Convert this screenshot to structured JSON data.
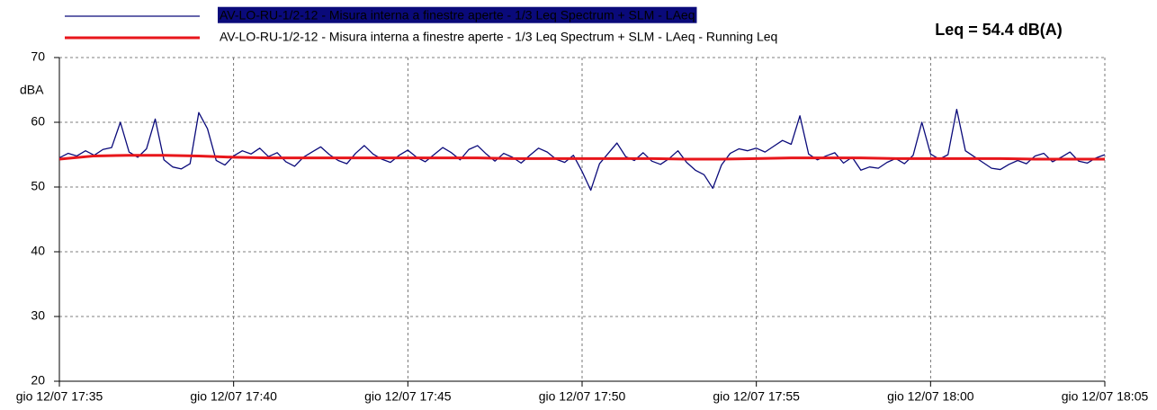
{
  "chart_data": {
    "type": "line",
    "annotation": "Leq = 54.4 dB(A)",
    "ylabel": "dBA",
    "xlim": [
      0,
      30
    ],
    "xticks": [
      {
        "value": 0,
        "label": "gio 12/07 17:35"
      },
      {
        "value": 5,
        "label": "gio 12/07 17:40"
      },
      {
        "value": 10,
        "label": "gio 12/07 17:45"
      },
      {
        "value": 15,
        "label": "gio 12/07 17:50"
      },
      {
        "value": 20,
        "label": "gio 12/07 17:55"
      },
      {
        "value": 25,
        "label": "gio 12/07 18:00"
      },
      {
        "value": 30,
        "label": "gio 12/07 18:05"
      }
    ],
    "ylim": [
      20,
      70
    ],
    "yticks": [
      20,
      30,
      40,
      50,
      60,
      70
    ],
    "grid": true,
    "legend": "top",
    "series": [
      {
        "name": "AV-LO-RU-1/2-12 - Misura interna a finestre aperte - 1/3 Leq Spectrum + SLM - LAeq",
        "color": "#0a0a7a",
        "x": [
          0,
          0.25,
          0.5,
          0.75,
          1,
          1.25,
          1.5,
          1.75,
          2,
          2.25,
          2.5,
          2.75,
          3,
          3.25,
          3.5,
          3.75,
          4,
          4.25,
          4.5,
          4.75,
          5,
          5.25,
          5.5,
          5.75,
          6,
          6.25,
          6.5,
          6.75,
          7,
          7.25,
          7.5,
          7.75,
          8,
          8.25,
          8.5,
          8.75,
          9,
          9.25,
          9.5,
          9.75,
          10,
          10.25,
          10.5,
          10.75,
          11,
          11.25,
          11.5,
          11.75,
          12,
          12.25,
          12.5,
          12.75,
          13,
          13.25,
          13.5,
          13.75,
          14,
          14.25,
          14.5,
          14.75,
          15,
          15.25,
          15.5,
          15.75,
          16,
          16.25,
          16.5,
          16.75,
          17,
          17.25,
          17.5,
          17.75,
          18,
          18.25,
          18.5,
          18.75,
          19,
          19.25,
          19.5,
          19.75,
          20,
          20.25,
          20.5,
          20.75,
          21,
          21.25,
          21.5,
          21.75,
          22,
          22.25,
          22.5,
          22.75,
          23,
          23.25,
          23.5,
          23.75,
          24,
          24.25,
          24.5,
          24.75,
          25,
          25.25,
          25.5,
          25.75,
          26,
          26.25,
          26.5,
          26.75,
          27,
          27.25,
          27.5,
          27.75,
          28,
          28.25,
          28.5,
          28.75,
          29,
          29.25,
          29.5,
          29.75,
          30
        ],
        "values": [
          54.5,
          55.2,
          54.8,
          55.6,
          54.9,
          55.8,
          56.1,
          60.0,
          55.4,
          54.6,
          55.9,
          60.5,
          54.2,
          53.1,
          52.8,
          53.6,
          61.5,
          59.0,
          54.1,
          53.4,
          54.8,
          55.6,
          55.1,
          56.0,
          54.7,
          55.3,
          53.9,
          53.2,
          54.6,
          55.4,
          56.2,
          55.0,
          54.1,
          53.6,
          55.2,
          56.4,
          55.1,
          54.3,
          53.8,
          54.9,
          55.7,
          54.6,
          53.9,
          55.0,
          56.1,
          55.3,
          54.2,
          55.8,
          56.4,
          55.1,
          54.0,
          55.2,
          54.6,
          53.7,
          54.9,
          56.0,
          55.4,
          54.3,
          53.8,
          54.9,
          52.4,
          49.5,
          53.6,
          55.2,
          56.8,
          54.7,
          54.1,
          55.3,
          54.0,
          53.5,
          54.4,
          55.6,
          53.8,
          52.6,
          51.9,
          49.8,
          53.4,
          55.2,
          55.9,
          55.6,
          56.0,
          55.4,
          56.3,
          57.2,
          56.6,
          61.0,
          55.1,
          54.2,
          54.8,
          55.3,
          53.7,
          54.6,
          52.6,
          53.1,
          52.9,
          53.8,
          54.4,
          53.6,
          54.9,
          60.0,
          55.1,
          54.3,
          55.0,
          62.0,
          55.6,
          54.7,
          53.8,
          52.9,
          52.7,
          53.5,
          54.1,
          53.6,
          54.8,
          55.2,
          53.9,
          54.6,
          55.4,
          54.0,
          53.7,
          54.5,
          55.0
        ]
      },
      {
        "name": "AV-LO-RU-1/2-12 - Misura interna a finestre aperte - 1/3 Leq Spectrum + SLM - LAeq - Running Leq",
        "color": "#e8161b",
        "x": [
          0,
          1,
          2,
          3,
          4,
          5,
          6,
          7,
          8,
          9,
          10,
          11,
          12,
          13,
          14,
          15,
          16,
          17,
          18,
          19,
          20,
          21,
          22,
          23,
          24,
          25,
          26,
          27,
          28,
          29,
          30
        ],
        "values": [
          54.3,
          54.8,
          54.9,
          54.9,
          54.8,
          54.6,
          54.5,
          54.5,
          54.5,
          54.5,
          54.5,
          54.5,
          54.5,
          54.4,
          54.4,
          54.4,
          54.4,
          54.4,
          54.3,
          54.3,
          54.4,
          54.5,
          54.5,
          54.5,
          54.4,
          54.4,
          54.4,
          54.4,
          54.3,
          54.3,
          54.3
        ]
      }
    ]
  }
}
